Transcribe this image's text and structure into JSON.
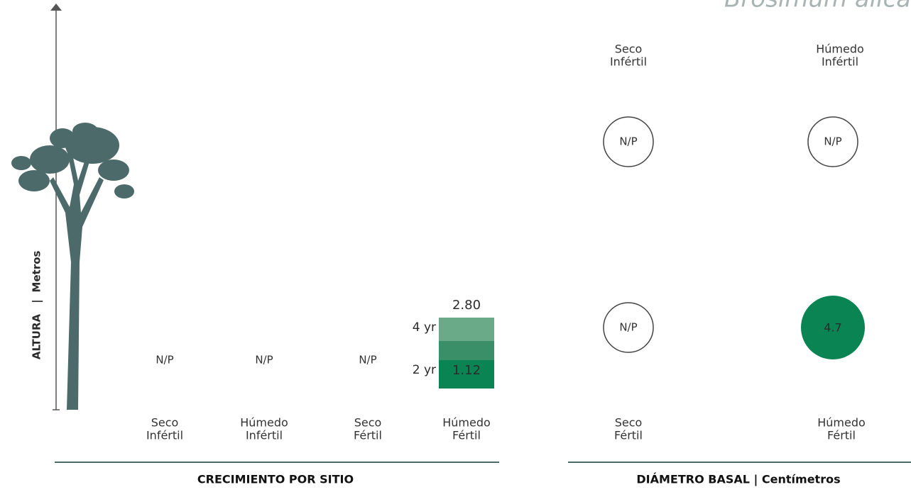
{
  "title": "Brosimum alicastrum",
  "height_chart": {
    "axis_label": {
      "main": "ALTURA",
      "separator": "|",
      "unit": "Metros"
    },
    "sites": [
      {
        "lines": [
          "Seco",
          "Infértil"
        ],
        "value": "N/P"
      },
      {
        "lines": [
          "Húmedo",
          "Infértil"
        ],
        "value": "N/P"
      },
      {
        "lines": [
          "Seco",
          "Fértil"
        ],
        "value": "N/P"
      },
      {
        "lines": [
          "Húmedo",
          "Fértil"
        ],
        "bars": [
          {
            "age": "2 yr",
            "height": 1.12
          },
          {
            "age": "4 yr",
            "height": {
              "value": 2.8,
              "label": "2.80"
            }
          }
        ]
      }
    ],
    "footer": "CRECIMIENTO POR SITIO"
  },
  "diameter_chart": {
    "cells": [
      {
        "lines": [
          "Seco",
          "Infértil"
        ],
        "value": "N/P"
      },
      {
        "lines": [
          "Húmedo",
          "Infértil"
        ],
        "value": "N/P"
      },
      {
        "lines": [
          "Seco",
          "Fértil"
        ],
        "value": "N/P"
      },
      {
        "lines": [
          "Húmedo",
          "Fértil"
        ],
        "value": 4.7
      }
    ],
    "footer": "DIÁMETRO BASAL | Centímetros"
  }
}
